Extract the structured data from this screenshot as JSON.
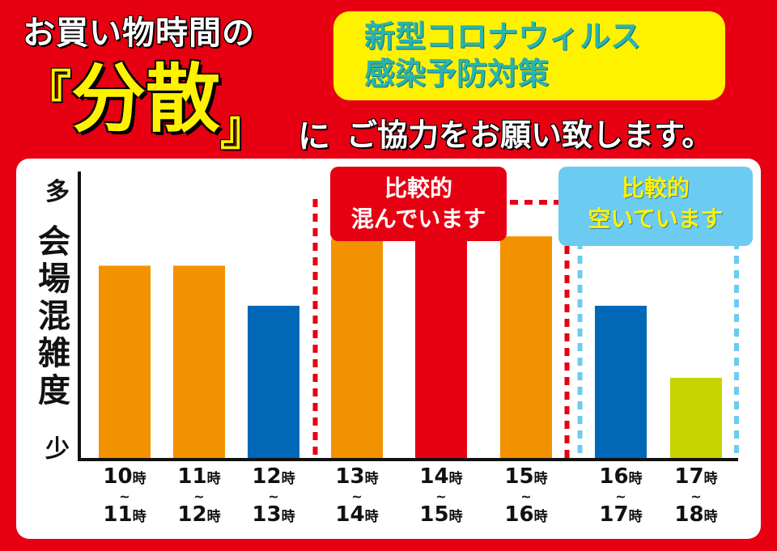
{
  "header": {
    "line1": "お買い物時間の",
    "bracket_open": "『",
    "keyword": "分散",
    "bracket_close": "』",
    "particle": "に",
    "request": "ご協力をお願い致します。"
  },
  "notice": {
    "line1": "新型コロナウィルス",
    "line2": "感染予防対策"
  },
  "tags": {
    "busy": [
      "比較的",
      "混んでいます"
    ],
    "free": [
      "比較的",
      "空いています"
    ]
  },
  "colors": {
    "background": "#e60012",
    "orange": "#f39200",
    "blue": "#0068b7",
    "red": "#e60012",
    "green": "#c8d400",
    "busy_zone": "#e60012",
    "free_zone": "#6ccbf0"
  },
  "chart_data": {
    "type": "bar",
    "ylabel": "会場混雑度",
    "y_top_label": "多",
    "y_bottom_label": "少",
    "categories": [
      {
        "from": "10",
        "to": "11"
      },
      {
        "from": "11",
        "to": "12"
      },
      {
        "from": "12",
        "to": "13"
      },
      {
        "from": "13",
        "to": "14"
      },
      {
        "from": "14",
        "to": "15"
      },
      {
        "from": "15",
        "to": "16"
      },
      {
        "from": "16",
        "to": "17"
      },
      {
        "from": "17",
        "to": "18"
      }
    ],
    "hour_unit": "時",
    "range_sep": "~",
    "values": [
      72,
      72,
      57,
      82,
      94,
      83,
      57,
      30
    ],
    "bar_colors": [
      "#f39200",
      "#f39200",
      "#0068b7",
      "#f39200",
      "#e60012",
      "#f39200",
      "#0068b7",
      "#c8d400"
    ],
    "ylim": [
      0,
      100
    ],
    "grid": false,
    "busy_range": [
      3,
      5
    ],
    "free_range": [
      6,
      7
    ]
  }
}
